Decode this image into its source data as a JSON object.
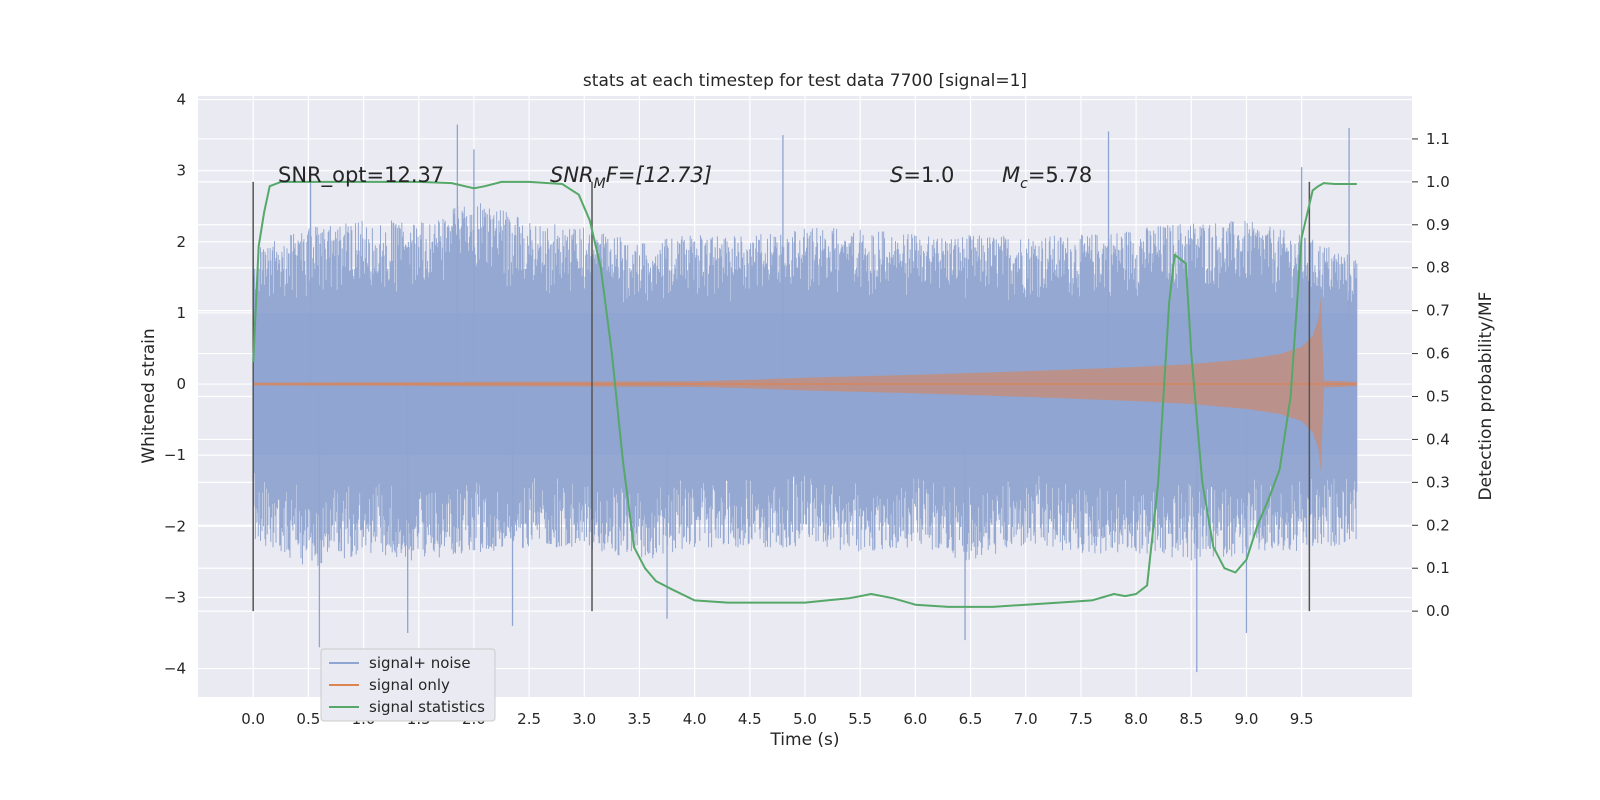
{
  "chart_data": {
    "type": "line",
    "title": "stats at each timestep for test data 7700 [signal=1]",
    "xlabel": "Time (s)",
    "ylabel_left": "Whitened strain",
    "ylabel_right": "Detection probability/MF",
    "xlim": [
      -0.5,
      10.5
    ],
    "ylim_left": [
      -4.4,
      4.05
    ],
    "ylim_right": [
      -0.2,
      1.2
    ],
    "x_ticks": [
      "0.0",
      "0.5",
      "1.0",
      "1.5",
      "2.0",
      "2.5",
      "3.0",
      "3.5",
      "4.0",
      "4.5",
      "5.0",
      "5.5",
      "6.0",
      "6.5",
      "7.0",
      "7.5",
      "8.0",
      "8.5",
      "9.0",
      "9.5"
    ],
    "y_left_ticks": [
      "−4",
      "−3",
      "−2",
      "−1",
      "0",
      "1",
      "2",
      "3",
      "4"
    ],
    "y_right_ticks": [
      "0.0",
      "0.1",
      "0.2",
      "0.3",
      "0.4",
      "0.5",
      "0.6",
      "0.7",
      "0.8",
      "0.9",
      "1.0",
      "1.1"
    ],
    "grid": true,
    "legend_position": "lower-left",
    "legend": [
      "signal+ noise",
      "signal only",
      "signal statistics"
    ],
    "colors": {
      "noise": "#8fa4d0",
      "signal": "#dd8452",
      "stats": "#55a868",
      "background": "#eaeaf2",
      "vlines": "#555555"
    },
    "annotations": {
      "snr_opt": "SNR_opt=12.37",
      "snr_mf_main": "SNR",
      "snr_mf_sub": "M",
      "snr_mf_rest": "F=[12.73]",
      "s_main": "S",
      "s_rest": "=1.0",
      "mc_main": "M",
      "mc_sub": "c",
      "mc_rest": "=5.78"
    },
    "vlines_x": [
      0.0,
      3.07,
      9.57
    ],
    "series": [
      {
        "name": "signal+ noise",
        "axis": "left",
        "envelope": {
          "x": [
            0.0,
            0.5,
            1.0,
            1.5,
            2.0,
            2.5,
            3.0,
            3.5,
            4.0,
            4.5,
            5.0,
            5.5,
            6.0,
            6.5,
            7.0,
            7.5,
            8.0,
            8.5,
            9.0,
            9.5,
            10.0
          ],
          "upper_typical": [
            1.9,
            2.2,
            2.3,
            2.3,
            2.6,
            2.3,
            2.2,
            2.0,
            2.1,
            2.1,
            2.2,
            2.2,
            2.1,
            2.1,
            2.1,
            2.1,
            2.2,
            2.3,
            2.3,
            2.1,
            1.8
          ],
          "lower_typical": [
            -2.2,
            -2.6,
            -2.4,
            -2.5,
            -2.4,
            -2.3,
            -2.3,
            -2.5,
            -2.3,
            -2.3,
            -2.3,
            -2.4,
            -2.3,
            -2.5,
            -2.3,
            -2.4,
            -2.4,
            -2.5,
            -2.4,
            -2.4,
            -2.2
          ]
        },
        "peaks": [
          [
            0.52,
            3.0
          ],
          [
            1.85,
            3.65
          ],
          [
            2.0,
            3.3
          ],
          [
            4.8,
            3.5
          ],
          [
            7.75,
            3.55
          ],
          [
            9.5,
            3.05
          ],
          [
            9.93,
            3.6
          ],
          [
            0.6,
            -3.7
          ],
          [
            1.4,
            -3.5
          ],
          [
            2.35,
            -3.4
          ],
          [
            3.75,
            -3.3
          ],
          [
            6.45,
            -3.6
          ],
          [
            8.55,
            -4.05
          ],
          [
            9.0,
            -3.5
          ]
        ]
      },
      {
        "name": "signal only",
        "axis": "left",
        "envelope": {
          "x": [
            0.0,
            2.0,
            4.0,
            4.5,
            5.0,
            6.0,
            7.0,
            8.0,
            8.5,
            9.0,
            9.3,
            9.5,
            9.6,
            9.65,
            9.68,
            9.7,
            10.0
          ],
          "amplitude": [
            0.02,
            0.03,
            0.04,
            0.06,
            0.09,
            0.13,
            0.18,
            0.24,
            0.28,
            0.35,
            0.42,
            0.52,
            0.68,
            0.9,
            1.3,
            0.05,
            0.03
          ]
        }
      },
      {
        "name": "signal statistics",
        "axis": "right",
        "x": [
          0.0,
          0.05,
          0.1,
          0.15,
          0.25,
          0.5,
          1.0,
          1.5,
          1.8,
          2.0,
          2.1,
          2.25,
          2.5,
          2.8,
          2.95,
          3.05,
          3.15,
          3.25,
          3.35,
          3.45,
          3.55,
          3.65,
          3.8,
          4.0,
          4.3,
          4.7,
          5.0,
          5.2,
          5.4,
          5.6,
          5.8,
          6.0,
          6.3,
          6.7,
          7.0,
          7.3,
          7.6,
          7.8,
          7.9,
          8.0,
          8.1,
          8.2,
          8.3,
          8.35,
          8.45,
          8.5,
          8.6,
          8.7,
          8.8,
          8.9,
          9.0,
          9.1,
          9.2,
          9.3,
          9.4,
          9.5,
          9.6,
          9.65,
          9.7,
          9.8,
          9.9,
          10.0
        ],
        "y": [
          0.58,
          0.85,
          0.93,
          0.99,
          1.0,
          1.0,
          1.0,
          1.0,
          0.997,
          0.985,
          0.99,
          1.0,
          1.0,
          0.995,
          0.97,
          0.91,
          0.8,
          0.6,
          0.35,
          0.15,
          0.1,
          0.07,
          0.05,
          0.025,
          0.02,
          0.02,
          0.02,
          0.025,
          0.03,
          0.04,
          0.03,
          0.015,
          0.01,
          0.01,
          0.015,
          0.02,
          0.025,
          0.04,
          0.035,
          0.04,
          0.06,
          0.3,
          0.72,
          0.83,
          0.81,
          0.6,
          0.3,
          0.15,
          0.1,
          0.09,
          0.12,
          0.2,
          0.26,
          0.33,
          0.5,
          0.87,
          0.98,
          0.99,
          0.997,
          0.995,
          0.995,
          0.995
        ]
      }
    ]
  }
}
